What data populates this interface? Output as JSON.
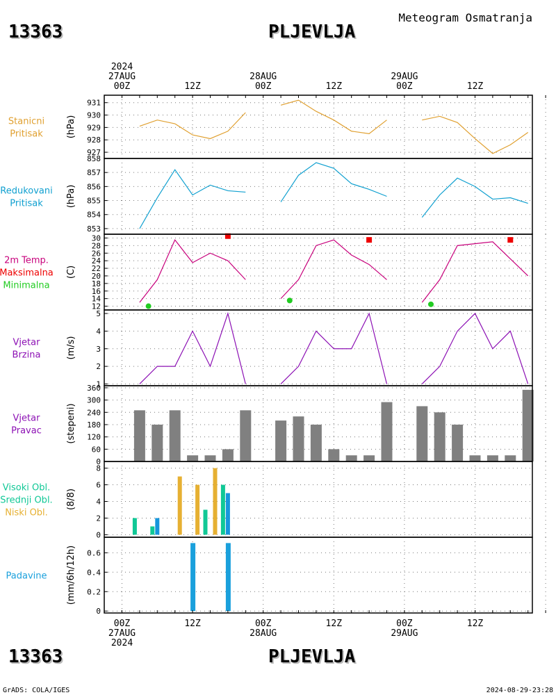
{
  "header": {
    "station_id": "13363",
    "station_name": "PLJEVLJA",
    "subtitle": "Meteogram Osmatranja"
  },
  "time_axis": {
    "top_labels": [
      {
        "col": 0,
        "lines": [
          "2024",
          "27AUG",
          "00Z"
        ]
      },
      {
        "col": 4,
        "lines": [
          "12Z"
        ]
      },
      {
        "col": 8,
        "lines": [
          "28AUG",
          "00Z"
        ]
      },
      {
        "col": 12,
        "lines": [
          "12Z"
        ]
      },
      {
        "col": 16,
        "lines": [
          "29AUG",
          "00Z"
        ]
      },
      {
        "col": 20,
        "lines": [
          "12Z"
        ]
      }
    ],
    "bottom_labels": [
      {
        "col": 0,
        "lines": [
          "00Z",
          "27AUG",
          "2024"
        ]
      },
      {
        "col": 4,
        "lines": [
          "12Z"
        ]
      },
      {
        "col": 8,
        "lines": [
          "00Z",
          "28AUG"
        ]
      },
      {
        "col": 12,
        "lines": [
          "12Z"
        ]
      },
      {
        "col": 16,
        "lines": [
          "00Z",
          "29AUG"
        ]
      },
      {
        "col": 20,
        "lines": [
          "12Z"
        ]
      }
    ]
  },
  "footer": {
    "left": "GrADS: COLA/IGES",
    "right": "2024-08-29-23:28"
  },
  "colors": {
    "station_pressure": "#e0a030",
    "reduced_pressure": "#10a0d0",
    "temperature": "#c8007c",
    "tmax": "#ee0000",
    "tmin": "#22cc22",
    "wind": "#8c10b4",
    "wind_dir_bar": "#808080",
    "cloud_high": "#10c896",
    "cloud_mid": "#1696dc",
    "cloud_low": "#e6b032",
    "precip": "#1aa0dc"
  },
  "chart_data": [
    {
      "type": "line",
      "label_lines": [
        "Stanicni",
        "Pritisak"
      ],
      "ylabel": "(hPa)",
      "ylim": [
        926.5,
        931.6
      ],
      "yticks": [
        927,
        928,
        929,
        930,
        931
      ],
      "x_unit": "hours since 27AUG 00Z",
      "series": [
        {
          "x": [
            1,
            2,
            3,
            4,
            5,
            6,
            7
          ],
          "y": [
            929.1,
            929.6,
            929.3,
            928.4,
            928.1,
            928.7,
            930.2
          ]
        },
        {
          "x": [
            9,
            10,
            11,
            12,
            13,
            14,
            15
          ],
          "y": [
            930.8,
            931.2,
            930.3,
            929.6,
            928.7,
            928.5,
            929.6
          ]
        },
        {
          "x": [
            17,
            18,
            19,
            20,
            21,
            22,
            23
          ],
          "y": [
            929.6,
            929.9,
            929.4,
            928.1,
            926.9,
            927.6,
            928.6
          ]
        }
      ]
    },
    {
      "type": "line",
      "label_lines": [
        "Redukovani",
        "Pritisak"
      ],
      "ylabel": "(hPa)",
      "ylim": [
        852.6,
        858.0
      ],
      "yticks": [
        853,
        854,
        855,
        856,
        857,
        858
      ],
      "series": [
        {
          "x": [
            1,
            2,
            3,
            4,
            5,
            6,
            7
          ],
          "y": [
            853.0,
            855.2,
            857.2,
            855.4,
            856.1,
            855.7,
            855.6
          ]
        },
        {
          "x": [
            9,
            10,
            11,
            12,
            13,
            14,
            15
          ],
          "y": [
            854.9,
            856.8,
            857.7,
            857.3,
            856.2,
            855.8,
            855.3
          ]
        },
        {
          "x": [
            17,
            18,
            19,
            20,
            21,
            22,
            23
          ],
          "y": [
            853.8,
            855.4,
            856.6,
            856.0,
            855.1,
            855.2,
            854.8
          ]
        }
      ]
    },
    {
      "type": "line",
      "label_lines": [
        "2m Temp.",
        "Maksimalna",
        "Minimalna"
      ],
      "ylabel": "(C)",
      "ylim": [
        11,
        31
      ],
      "yticks": [
        12,
        14,
        16,
        18,
        20,
        22,
        24,
        26,
        28,
        30
      ],
      "series": [
        {
          "x": [
            1,
            2,
            3,
            4,
            5,
            6,
            7
          ],
          "y": [
            13,
            19,
            29.5,
            23.5,
            26,
            24,
            19
          ]
        },
        {
          "x": [
            9,
            10,
            11,
            12,
            13,
            14,
            15
          ],
          "y": [
            14,
            19,
            28,
            29.5,
            25.5,
            23,
            19
          ]
        },
        {
          "x": [
            17,
            18,
            19,
            20,
            21,
            22,
            23
          ],
          "y": [
            13,
            19,
            28,
            28.5,
            29,
            24.5,
            20
          ]
        }
      ],
      "tmax": [
        {
          "x": 6,
          "y": 30.5
        },
        {
          "x": 14,
          "y": 29.5
        },
        {
          "x": 22,
          "y": 29.5
        }
      ],
      "tmin": [
        {
          "x": 1.5,
          "y": 12
        },
        {
          "x": 9.5,
          "y": 13.5
        },
        {
          "x": 17.5,
          "y": 12.5
        }
      ]
    },
    {
      "type": "line",
      "label_lines": [
        "Vjetar",
        "Brzina"
      ],
      "ylabel": "(m/s)",
      "ylim": [
        0.9,
        5.2
      ],
      "yticks": [
        1,
        2,
        3,
        4,
        5
      ],
      "series": [
        {
          "x": [
            1,
            2,
            3,
            4,
            5,
            6,
            7
          ],
          "y": [
            1,
            2,
            2,
            4,
            2,
            5,
            1
          ]
        },
        {
          "x": [
            9,
            10,
            11,
            12,
            13,
            14,
            15
          ],
          "y": [
            1,
            2,
            4,
            3,
            3,
            5,
            1
          ]
        },
        {
          "x": [
            17,
            18,
            19,
            20,
            21,
            22,
            23
          ],
          "y": [
            1,
            2,
            4,
            5,
            3,
            4,
            1
          ]
        }
      ]
    },
    {
      "type": "bar",
      "label_lines": [
        "Vjetar",
        "Pravac"
      ],
      "ylabel": "(stepeni)",
      "ylim": [
        0,
        370
      ],
      "yticks": [
        0,
        60,
        120,
        180,
        240,
        300,
        360
      ],
      "series": [
        {
          "x": [
            1,
            2,
            3,
            4,
            5,
            6,
            7
          ],
          "y": [
            250,
            180,
            250,
            30,
            30,
            60,
            250
          ]
        },
        {
          "x": [
            9,
            10,
            11,
            12,
            13,
            14,
            15
          ],
          "y": [
            200,
            220,
            180,
            60,
            30,
            30,
            290
          ]
        },
        {
          "x": [
            17,
            18,
            19,
            20,
            21,
            22,
            23
          ],
          "y": [
            270,
            240,
            180,
            30,
            30,
            30,
            350
          ]
        }
      ]
    },
    {
      "type": "bar",
      "label_lines": [
        "Visoki Obl.",
        "Srednji Obl.",
        "Niski Obl."
      ],
      "ylabel": "(8/8)",
      "ylim": [
        -0.3,
        8.8
      ],
      "yticks": [
        0,
        2,
        4,
        6,
        8
      ],
      "series": [
        {
          "name": "Visoki Obl.",
          "x": [
            1,
            2,
            3,
            4,
            5,
            6,
            7
          ],
          "y": [
            2,
            1,
            0,
            0,
            3,
            6,
            0
          ]
        },
        {
          "name": "Srednji Obl.",
          "x": [
            1,
            2,
            3,
            4,
            5,
            6,
            7
          ],
          "y": [
            0,
            2,
            0,
            0,
            0,
            5,
            0
          ]
        },
        {
          "name": "Niski Obl.",
          "x": [
            1,
            2,
            3,
            4,
            5,
            6,
            7
          ],
          "y": [
            0,
            0,
            7,
            6,
            8,
            0,
            0
          ]
        }
      ]
    },
    {
      "type": "bar",
      "label_lines": [
        "Padavine"
      ],
      "ylabel": "(mm/6h/12h)",
      "ylim": [
        -0.02,
        0.76
      ],
      "yticks": [
        0,
        0.2,
        0.4,
        0.6
      ],
      "series": [
        {
          "x": [
            4,
            6
          ],
          "y": [
            0.7,
            0.7
          ]
        }
      ]
    }
  ]
}
